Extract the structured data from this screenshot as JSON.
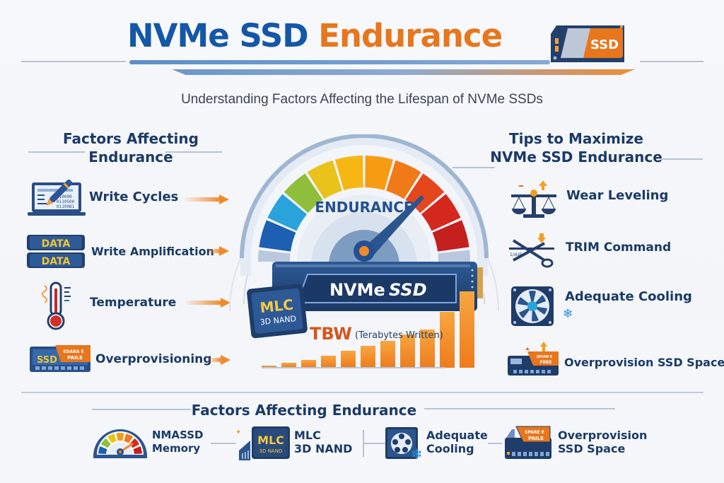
{
  "header": {
    "title_part1": "NVMe SSD",
    "title_part2": "Endurance",
    "badge": "SSD",
    "subtitle": "Understanding Factors Affecting the Lifespan of NVMe SSDs"
  },
  "left_panel": {
    "heading_line1": "Factors Affecting",
    "heading_line2": "Endurance",
    "items": [
      {
        "label": "Write Cycles",
        "icon": "laptop-pencil-icon",
        "icon_text": [
          "210000",
          "0110500",
          "0110081"
        ]
      },
      {
        "label": "Write Amplification",
        "icon": "data-stack-icon",
        "icon_text": [
          "DATA",
          "DATA"
        ]
      },
      {
        "label": "Temperature",
        "icon": "thermometer-icon"
      },
      {
        "label": "Overprovisioning",
        "icon": "ssd-spare-icon",
        "icon_text": [
          "SSD",
          "EDABA E",
          "PAILE"
        ]
      }
    ]
  },
  "center": {
    "gauge_label": "ENDURANCE",
    "ssd_label_1": "NVMe",
    "ssd_label_2": "SSD",
    "chip_line1": "MLC",
    "chip_line2": "3D NAND",
    "tbw_label": "TBW",
    "tbw_sub": "(Terabytes Written)",
    "tbw_bars": [
      3,
      7,
      11,
      17,
      24,
      31,
      38,
      47,
      54,
      79,
      108
    ],
    "gauge_colors": [
      "#1d5fb0",
      "#2aa3dc",
      "#8fbf3a",
      "#e9c31a",
      "#f6b713",
      "#f79c12",
      "#f07a18",
      "#e4471c",
      "#d4281d",
      "#c4201d"
    ]
  },
  "right_panel": {
    "heading_line1": "Tips to Maximize",
    "heading_line2": "NVMe SSD Endurance",
    "items": [
      {
        "label": "Wear Leveling",
        "icon": "balance-scale-icon"
      },
      {
        "label": "TRIM Command",
        "icon": "scissors-icon",
        "icon_text": "1/∂UE"
      },
      {
        "label": "Adequate Cooling",
        "icon": "fan-icon"
      },
      {
        "label": "Overprovision SSD Space",
        "icon": "ssd-spare-icon",
        "icon_text": [
          "SPIAN E",
          "FREE"
        ]
      }
    ]
  },
  "footer": {
    "heading": "Factors Affecting Endurance",
    "items": [
      {
        "line1": "NMASSD",
        "line2": "Memory",
        "icon": "gauge-icon"
      },
      {
        "line1": "MLC",
        "line2": "3D NAND",
        "icon": "chip-icon",
        "chip_text": [
          "MLC",
          "3D NAND"
        ]
      },
      {
        "line1": "Adequate",
        "line2": "Cooling",
        "icon": "fan-icon"
      },
      {
        "line1": "Overprovision",
        "line2": "SSD Space",
        "icon": "ssd-spare-icon",
        "icon_text": [
          "SPARE E",
          "PAILE"
        ]
      }
    ]
  }
}
